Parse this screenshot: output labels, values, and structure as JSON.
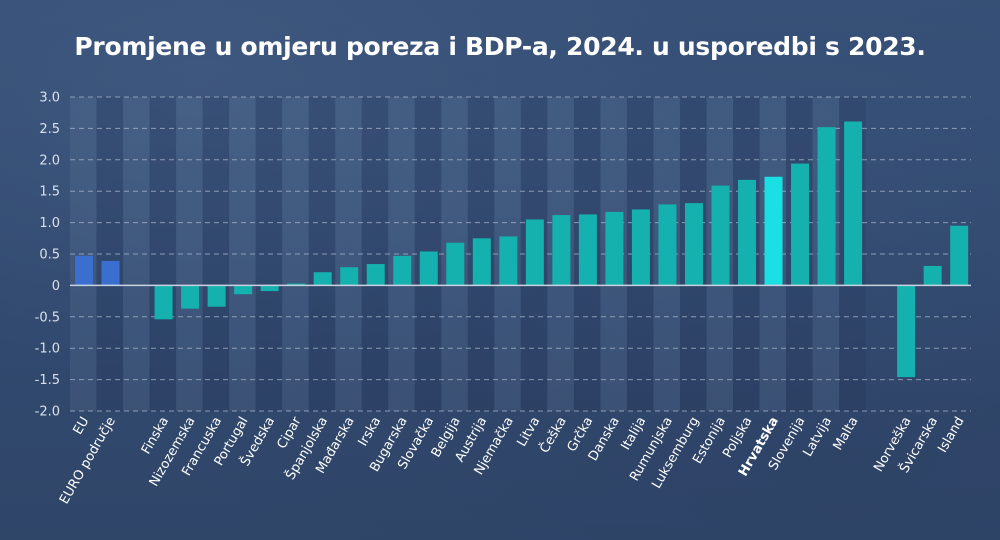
{
  "chart_data": {
    "type": "bar",
    "title": "Promjene u omjeru poreza i BDP-a, 2024. u usporedbi s 2023.",
    "xlabel": "",
    "ylabel": "",
    "ylim": [
      -2.0,
      3.0
    ],
    "yticks": [
      3.0,
      2.5,
      2.0,
      1.5,
      1.0,
      0.5,
      0,
      -0.5,
      -1.0,
      -1.5,
      -2.0
    ],
    "ytick_labels": [
      "3.0",
      "2.5",
      "2.0",
      "1.5",
      "1.0",
      "0.5",
      "0",
      "-0.5",
      "-1.0",
      "-1.5",
      "-2.0"
    ],
    "grid": true,
    "legend": "none",
    "colors": {
      "aggregate": "#3a6fd0",
      "country": "#14b1ae",
      "highlight": "#1adfe3",
      "grid": "#aab7cc",
      "zero_line": "#c9d2df"
    },
    "groups": [
      {
        "name": "aggregates",
        "categories": [
          "EU",
          "EURO područje"
        ],
        "values": [
          0.47,
          0.39
        ],
        "style": "aggregate"
      },
      {
        "name": "eu_countries",
        "categories": [
          "Finska",
          "Nizozemska",
          "Francuska",
          "Portugal",
          "Švedska",
          "Cipar",
          "Španjolska",
          "Mađarska",
          "Irska",
          "Bugarska",
          "Slovačka",
          "Belgija",
          "Austrija",
          "Njemačka",
          "Litva",
          "Češka",
          "Grčka",
          "Danska",
          "Italija",
          "Rumunjska",
          "Luksemburg",
          "Estonija",
          "Poljska",
          "Hrvatska",
          "Slovenija",
          "Latvija",
          "Malta"
        ],
        "values": [
          -0.54,
          -0.37,
          -0.34,
          -0.14,
          -0.09,
          0.03,
          0.21,
          0.29,
          0.34,
          0.47,
          0.54,
          0.68,
          0.75,
          0.78,
          1.05,
          1.12,
          1.13,
          1.17,
          1.21,
          1.29,
          1.31,
          1.59,
          1.68,
          1.73,
          1.94,
          2.52,
          2.61
        ],
        "style": "country",
        "highlight": "Hrvatska"
      },
      {
        "name": "non_eu_countries",
        "categories": [
          "Norveška",
          "Švicarska",
          "Island"
        ],
        "values": [
          -1.46,
          0.31,
          0.95
        ],
        "style": "country"
      }
    ]
  }
}
